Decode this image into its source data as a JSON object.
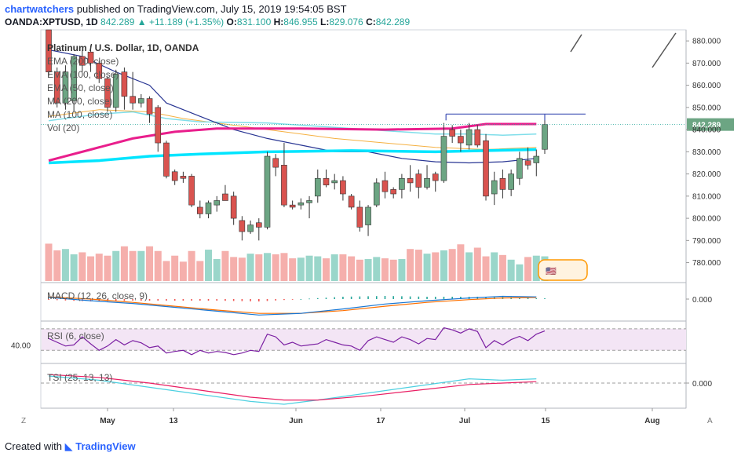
{
  "header": {
    "user": "chartwatchers",
    "published": "published on TradingView.com, July 15, 2019 19:54:05 BST",
    "symbol": "OANDA:XPTUSD, 1D",
    "last": "842.289",
    "change": "+11.189 (+1.35%)",
    "o_label": "O:",
    "o": "831.100",
    "h_label": "H:",
    "h": "846.955",
    "l_label": "L:",
    "l": "829.076",
    "c_label": "C:",
    "c": "842.289"
  },
  "footer": {
    "created": "Created with",
    "brand": "TradingView"
  },
  "colors": {
    "up": "#6ca583",
    "down": "#d9534f",
    "ema200": "#e91e8c",
    "ema100": "#00e5ff",
    "ema50": "#80deea",
    "ma200": "#f5b041",
    "ma100": "#283593",
    "macd": "#1976d2",
    "signal": "#ff6f00",
    "rsi": "#7b1fa2",
    "tsi": "#4dd0e1",
    "tsi_signal": "#e91e63"
  },
  "chart_data": {
    "type": "candlestick",
    "title": "Platinum / U.S. Dollar, 1D, OANDA",
    "price_axis": {
      "range": [
        771,
        885
      ],
      "ticks": [
        "880.000",
        "870.000",
        "860.000",
        "850.000",
        "840.000",
        "830.000",
        "820.000",
        "810.000",
        "800.000",
        "790.000",
        "780.000"
      ],
      "last_label": "842.289"
    },
    "time_axis": {
      "ticks": [
        "May",
        "13",
        "Jun",
        "17",
        "Jul",
        "15",
        "Aug"
      ]
    },
    "legend": [
      "EMA (200, close)",
      "EMA (100, close)",
      "EMA (50, close)",
      "MA (200, close)",
      "MA (100, close)",
      "Vol (20)"
    ],
    "candles": [
      {
        "o": 885,
        "h": 885,
        "l": 864,
        "c": 866
      },
      {
        "o": 866,
        "h": 868,
        "l": 850,
        "c": 852
      },
      {
        "o": 852,
        "h": 869,
        "l": 849,
        "c": 866
      },
      {
        "o": 853,
        "h": 874,
        "l": 848,
        "c": 873
      },
      {
        "o": 873,
        "h": 876,
        "l": 866,
        "c": 869
      },
      {
        "o": 875,
        "h": 878,
        "l": 866,
        "c": 870
      },
      {
        "o": 870,
        "h": 871,
        "l": 861,
        "c": 863
      },
      {
        "o": 863,
        "h": 864,
        "l": 848,
        "c": 850
      },
      {
        "o": 850,
        "h": 867,
        "l": 848,
        "c": 865
      },
      {
        "o": 866,
        "h": 868,
        "l": 849,
        "c": 855
      },
      {
        "o": 855,
        "h": 866,
        "l": 849,
        "c": 852
      },
      {
        "o": 852,
        "h": 856,
        "l": 850,
        "c": 854
      },
      {
        "o": 854,
        "h": 855,
        "l": 843,
        "c": 847
      },
      {
        "o": 850,
        "h": 851,
        "l": 830,
        "c": 834
      },
      {
        "o": 834,
        "h": 835,
        "l": 818,
        "c": 819
      },
      {
        "o": 821,
        "h": 822,
        "l": 815,
        "c": 817
      },
      {
        "o": 819,
        "h": 821,
        "l": 816,
        "c": 818
      },
      {
        "o": 819,
        "h": 820,
        "l": 805,
        "c": 806
      },
      {
        "o": 805,
        "h": 808,
        "l": 800,
        "c": 802
      },
      {
        "o": 802,
        "h": 808,
        "l": 800,
        "c": 807
      },
      {
        "o": 806,
        "h": 810,
        "l": 803,
        "c": 808
      },
      {
        "o": 811,
        "h": 815,
        "l": 808,
        "c": 808
      },
      {
        "o": 810,
        "h": 812,
        "l": 797,
        "c": 800
      },
      {
        "o": 799,
        "h": 801,
        "l": 790,
        "c": 794
      },
      {
        "o": 794,
        "h": 799,
        "l": 793,
        "c": 797
      },
      {
        "o": 798,
        "h": 800,
        "l": 790,
        "c": 796
      },
      {
        "o": 796,
        "h": 830,
        "l": 795,
        "c": 828
      },
      {
        "o": 827,
        "h": 829,
        "l": 819,
        "c": 823
      },
      {
        "o": 824,
        "h": 834,
        "l": 805,
        "c": 806
      },
      {
        "o": 806,
        "h": 808,
        "l": 804,
        "c": 805
      },
      {
        "o": 806,
        "h": 809,
        "l": 804,
        "c": 807
      },
      {
        "o": 807,
        "h": 810,
        "l": 800,
        "c": 808
      },
      {
        "o": 810,
        "h": 822,
        "l": 807,
        "c": 818
      },
      {
        "o": 818,
        "h": 822,
        "l": 814,
        "c": 815
      },
      {
        "o": 816,
        "h": 820,
        "l": 813,
        "c": 817
      },
      {
        "o": 817,
        "h": 819,
        "l": 808,
        "c": 811
      },
      {
        "o": 810,
        "h": 811,
        "l": 804,
        "c": 805
      },
      {
        "o": 805,
        "h": 808,
        "l": 794,
        "c": 796
      },
      {
        "o": 797,
        "h": 806,
        "l": 792,
        "c": 805
      },
      {
        "o": 806,
        "h": 818,
        "l": 805,
        "c": 816
      },
      {
        "o": 817,
        "h": 821,
        "l": 809,
        "c": 812
      },
      {
        "o": 813,
        "h": 814,
        "l": 809,
        "c": 811
      },
      {
        "o": 813,
        "h": 820,
        "l": 809,
        "c": 818
      },
      {
        "o": 818,
        "h": 824,
        "l": 812,
        "c": 816
      },
      {
        "o": 820,
        "h": 822,
        "l": 809,
        "c": 814
      },
      {
        "o": 814,
        "h": 824,
        "l": 813,
        "c": 818
      },
      {
        "o": 820,
        "h": 821,
        "l": 812,
        "c": 817
      },
      {
        "o": 817,
        "h": 843,
        "l": 816,
        "c": 837
      },
      {
        "o": 840,
        "h": 842,
        "l": 834,
        "c": 837
      },
      {
        "o": 837,
        "h": 840,
        "l": 830,
        "c": 834
      },
      {
        "o": 833,
        "h": 843,
        "l": 831,
        "c": 840
      },
      {
        "o": 840,
        "h": 842,
        "l": 832,
        "c": 833
      },
      {
        "o": 835,
        "h": 838,
        "l": 808,
        "c": 810
      },
      {
        "o": 811,
        "h": 821,
        "l": 806,
        "c": 817
      },
      {
        "o": 818,
        "h": 822,
        "l": 809,
        "c": 813
      },
      {
        "o": 813,
        "h": 822,
        "l": 810,
        "c": 820
      },
      {
        "o": 818,
        "h": 830,
        "l": 815,
        "c": 827
      },
      {
        "o": 826,
        "h": 832,
        "l": 822,
        "c": 824
      },
      {
        "o": 825,
        "h": 831,
        "l": 819,
        "c": 828
      },
      {
        "o": 831.1,
        "h": 846.955,
        "l": 829.076,
        "c": 842.289
      }
    ],
    "horizontal_line": 847,
    "ema200": [
      [
        0,
        826
      ],
      [
        5,
        831
      ],
      [
        10,
        836
      ],
      [
        15,
        839
      ],
      [
        20,
        840.5
      ],
      [
        30,
        840.5
      ],
      [
        40,
        840
      ],
      [
        48,
        840.5
      ],
      [
        52,
        842.5
      ],
      [
        58,
        842.5
      ]
    ],
    "ema100": [
      [
        0,
        825
      ],
      [
        6,
        826
      ],
      [
        12,
        828
      ],
      [
        18,
        829
      ],
      [
        26,
        830
      ],
      [
        36,
        830.5
      ],
      [
        46,
        830
      ],
      [
        52,
        830.5
      ],
      [
        58,
        831
      ]
    ],
    "ema50": [
      [
        0,
        844
      ],
      [
        6,
        847
      ],
      [
        10,
        848
      ],
      [
        14,
        845
      ],
      [
        18,
        843.5
      ],
      [
        26,
        843
      ],
      [
        34,
        841
      ],
      [
        40,
        839.5
      ],
      [
        46,
        838
      ],
      [
        50,
        838
      ],
      [
        54,
        837.5
      ],
      [
        58,
        838
      ]
    ],
    "ma200": [
      [
        0,
        846
      ],
      [
        6,
        849
      ],
      [
        12,
        848
      ],
      [
        16,
        845
      ],
      [
        22,
        842
      ],
      [
        28,
        839
      ],
      [
        34,
        836
      ],
      [
        40,
        834
      ],
      [
        46,
        832
      ],
      [
        52,
        831
      ],
      [
        58,
        832
      ]
    ],
    "ma100": [
      [
        0,
        876
      ],
      [
        4,
        873
      ],
      [
        8,
        866
      ],
      [
        12,
        860
      ],
      [
        14,
        852
      ],
      [
        18,
        846
      ],
      [
        22,
        840
      ],
      [
        26,
        836
      ],
      [
        30,
        833
      ],
      [
        34,
        830
      ],
      [
        38,
        830
      ],
      [
        42,
        827
      ],
      [
        46,
        825.5
      ],
      [
        50,
        825
      ],
      [
        54,
        825.5
      ],
      [
        58,
        827
      ]
    ],
    "volume": [
      0.56,
      0.46,
      0.48,
      0.4,
      0.43,
      0.37,
      0.41,
      0.38,
      0.45,
      0.52,
      0.45,
      0.45,
      0.52,
      0.45,
      0.3,
      0.38,
      0.29,
      0.45,
      0.3,
      0.47,
      0.33,
      0.45,
      0.36,
      0.35,
      0.41,
      0.4,
      0.42,
      0.4,
      0.42,
      0.34,
      0.35,
      0.38,
      0.37,
      0.34,
      0.4,
      0.4,
      0.37,
      0.32,
      0.33,
      0.36,
      0.34,
      0.32,
      0.33,
      0.48,
      0.47,
      0.41,
      0.43,
      0.46,
      0.48,
      0.55,
      0.43,
      0.5,
      0.37,
      0.43,
      0.39,
      0.32,
      0.25,
      0.36,
      0.38,
      0.37
    ],
    "macd": {
      "zero_label": "0.000",
      "legend": "MACD (12, 26, close, 9)",
      "macd": [
        [
          0,
          0.3
        ],
        [
          5,
          -0.3
        ],
        [
          10,
          -0.8
        ],
        [
          15,
          -1.5
        ],
        [
          20,
          -2.2
        ],
        [
          25,
          -2.9
        ],
        [
          30,
          -2.6
        ],
        [
          35,
          -1.8
        ],
        [
          40,
          -0.9
        ],
        [
          45,
          -0.3
        ],
        [
          50,
          0.2
        ],
        [
          54,
          0.5
        ],
        [
          58,
          0.4
        ]
      ],
      "signal": [
        [
          0,
          0.4
        ],
        [
          5,
          0.0
        ],
        [
          10,
          -0.6
        ],
        [
          15,
          -1.3
        ],
        [
          20,
          -2.0
        ],
        [
          25,
          -2.6
        ],
        [
          30,
          -2.6
        ],
        [
          35,
          -2.1
        ],
        [
          40,
          -1.3
        ],
        [
          45,
          -0.6
        ],
        [
          50,
          -0.1
        ],
        [
          54,
          0.2
        ],
        [
          58,
          0.3
        ]
      ]
    },
    "rsi": {
      "label": "40.00",
      "legend": "RSI (6, close)",
      "band": [
        30,
        70
      ],
      "values": [
        52,
        45,
        38,
        40,
        55,
        42,
        30,
        38,
        50,
        40,
        48,
        44,
        35,
        38,
        25,
        28,
        30,
        22,
        30,
        25,
        28,
        26,
        22,
        25,
        30,
        28,
        60,
        55,
        40,
        45,
        38,
        40,
        42,
        50,
        45,
        40,
        38,
        30,
        48,
        55,
        50,
        45,
        55,
        50,
        42,
        52,
        50,
        72,
        68,
        62,
        70,
        65,
        35,
        48,
        40,
        50,
        56,
        48,
        60,
        66
      ]
    },
    "tsi": {
      "zero_label": "0.000",
      "legend": "TSI (25, 13, 13)",
      "tsi": [
        [
          0,
          0.5
        ],
        [
          6,
          0.2
        ],
        [
          12,
          -0.3
        ],
        [
          18,
          -0.8
        ],
        [
          24,
          -1.3
        ],
        [
          28,
          -1.5
        ],
        [
          32,
          -1.2
        ],
        [
          38,
          -0.7
        ],
        [
          44,
          -0.2
        ],
        [
          50,
          0.3
        ],
        [
          54,
          0.2
        ],
        [
          58,
          0.3
        ]
      ],
      "signal": [
        [
          0,
          0.6
        ],
        [
          6,
          0.4
        ],
        [
          12,
          0.0
        ],
        [
          18,
          -0.5
        ],
        [
          24,
          -1.0
        ],
        [
          28,
          -1.2
        ],
        [
          32,
          -1.2
        ],
        [
          38,
          -0.9
        ],
        [
          44,
          -0.5
        ],
        [
          50,
          -0.1
        ],
        [
          54,
          0.0
        ],
        [
          58,
          0.1
        ]
      ]
    }
  }
}
